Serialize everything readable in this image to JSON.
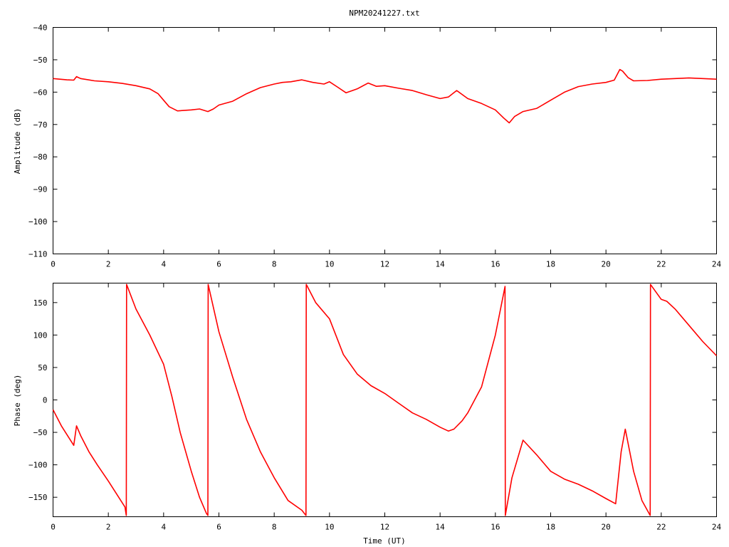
{
  "chart_data": [
    {
      "type": "line",
      "title": "NPM20241227.txt",
      "xlabel": "",
      "ylabel": "Amplitude (dB)",
      "xlim": [
        0,
        24
      ],
      "ylim": [
        -110,
        -40
      ],
      "xticks": [
        0,
        2,
        4,
        6,
        8,
        10,
        12,
        14,
        16,
        18,
        20,
        22,
        24
      ],
      "yticks": [
        -110,
        -100,
        -90,
        -80,
        -70,
        -60,
        -50,
        -40
      ],
      "grid": false,
      "color": "#ff0000",
      "series": [
        {
          "x": [
            0,
            0.5,
            0.75,
            0.85,
            1.0,
            1.5,
            2.0,
            2.5,
            3.0,
            3.5,
            3.8,
            4.0,
            4.2,
            4.5,
            5.0,
            5.3,
            5.6,
            5.8,
            6.0,
            6.5,
            7.0,
            7.5,
            8.0,
            8.3,
            8.6,
            9.0,
            9.4,
            9.8,
            10.0,
            10.3,
            10.6,
            11.0,
            11.4,
            11.7,
            12.0,
            12.5,
            13.0,
            13.5,
            14.0,
            14.3,
            14.6,
            15.0,
            15.5,
            16.0,
            16.3,
            16.5,
            16.7,
            17.0,
            17.5,
            18.0,
            18.5,
            19.0,
            19.5,
            20.0,
            20.3,
            20.5,
            20.6,
            20.8,
            21.0,
            21.5,
            22.0,
            22.5,
            23.0,
            23.5,
            24.0
          ],
          "y": [
            -55.8,
            -56.2,
            -56.3,
            -55.2,
            -55.8,
            -56.5,
            -56.8,
            -57.3,
            -58.0,
            -59.0,
            -60.5,
            -62.5,
            -64.5,
            -65.8,
            -65.5,
            -65.2,
            -66.0,
            -65.2,
            -64.0,
            -62.8,
            -60.5,
            -58.6,
            -57.5,
            -57.0,
            -56.8,
            -56.2,
            -57.0,
            -57.5,
            -56.8,
            -58.5,
            -60.2,
            -59.0,
            -57.2,
            -58.2,
            -58.0,
            -58.8,
            -59.5,
            -60.8,
            -62.0,
            -61.5,
            -59.5,
            -62.0,
            -63.5,
            -65.5,
            -68.0,
            -69.5,
            -67.5,
            -66.0,
            -65.0,
            -62.5,
            -60.0,
            -58.3,
            -57.5,
            -57.0,
            -56.3,
            -53.0,
            -53.5,
            -55.5,
            -56.5,
            -56.4,
            -56.0,
            -55.8,
            -55.6,
            -55.8,
            -56.0
          ]
        }
      ]
    },
    {
      "type": "line",
      "title": "",
      "xlabel": "Time (UT)",
      "ylabel": "Phase (deg)",
      "xlim": [
        0,
        24
      ],
      "ylim": [
        -180,
        180
      ],
      "xticks": [
        0,
        2,
        4,
        6,
        8,
        10,
        12,
        14,
        16,
        18,
        20,
        22,
        24
      ],
      "yticks": [
        -150,
        -100,
        -50,
        0,
        50,
        100,
        150
      ],
      "grid": false,
      "color": "#ff0000",
      "series": [
        {
          "x": [
            0,
            0.3,
            0.6,
            0.75,
            0.85,
            1.0,
            1.3,
            1.6,
            2.0,
            2.3,
            2.6,
            2.65,
            2.66,
            3.0,
            3.5,
            4.0,
            4.3,
            4.6,
            5.0,
            5.3,
            5.55,
            5.6,
            5.61,
            6.0,
            6.5,
            7.0,
            7.5,
            8.0,
            8.5,
            9.0,
            9.15,
            9.16,
            9.5,
            10.0,
            10.5,
            11.0,
            11.5,
            12.0,
            12.5,
            13.0,
            13.5,
            14.0,
            14.3,
            14.5,
            14.8,
            15.0,
            15.5,
            16.0,
            16.35,
            16.36,
            16.6,
            17.0,
            17.5,
            18.0,
            18.5,
            19.0,
            19.5,
            20.0,
            20.35,
            20.4,
            20.55,
            20.7,
            21.0,
            21.3,
            21.6,
            21.61,
            22.0,
            22.2,
            22.5,
            23.0,
            23.5,
            24.0
          ],
          "y": [
            -15,
            -40,
            -60,
            -70,
            -40,
            -55,
            -80,
            -100,
            -125,
            -145,
            -165,
            -178,
            178,
            140,
            100,
            55,
            5,
            -50,
            -110,
            -150,
            -175,
            -178,
            178,
            105,
            35,
            -30,
            -80,
            -120,
            -155,
            -170,
            -178,
            178,
            150,
            125,
            70,
            40,
            22,
            10,
            -5,
            -20,
            -30,
            -42,
            -48,
            -45,
            -32,
            -20,
            20,
            100,
            175,
            -178,
            -120,
            -62,
            -85,
            -110,
            -122,
            -130,
            -140,
            -152,
            -160,
            -140,
            -80,
            -45,
            -110,
            -155,
            -178,
            178,
            155,
            152,
            140,
            115,
            90,
            68
          ]
        }
      ]
    }
  ]
}
